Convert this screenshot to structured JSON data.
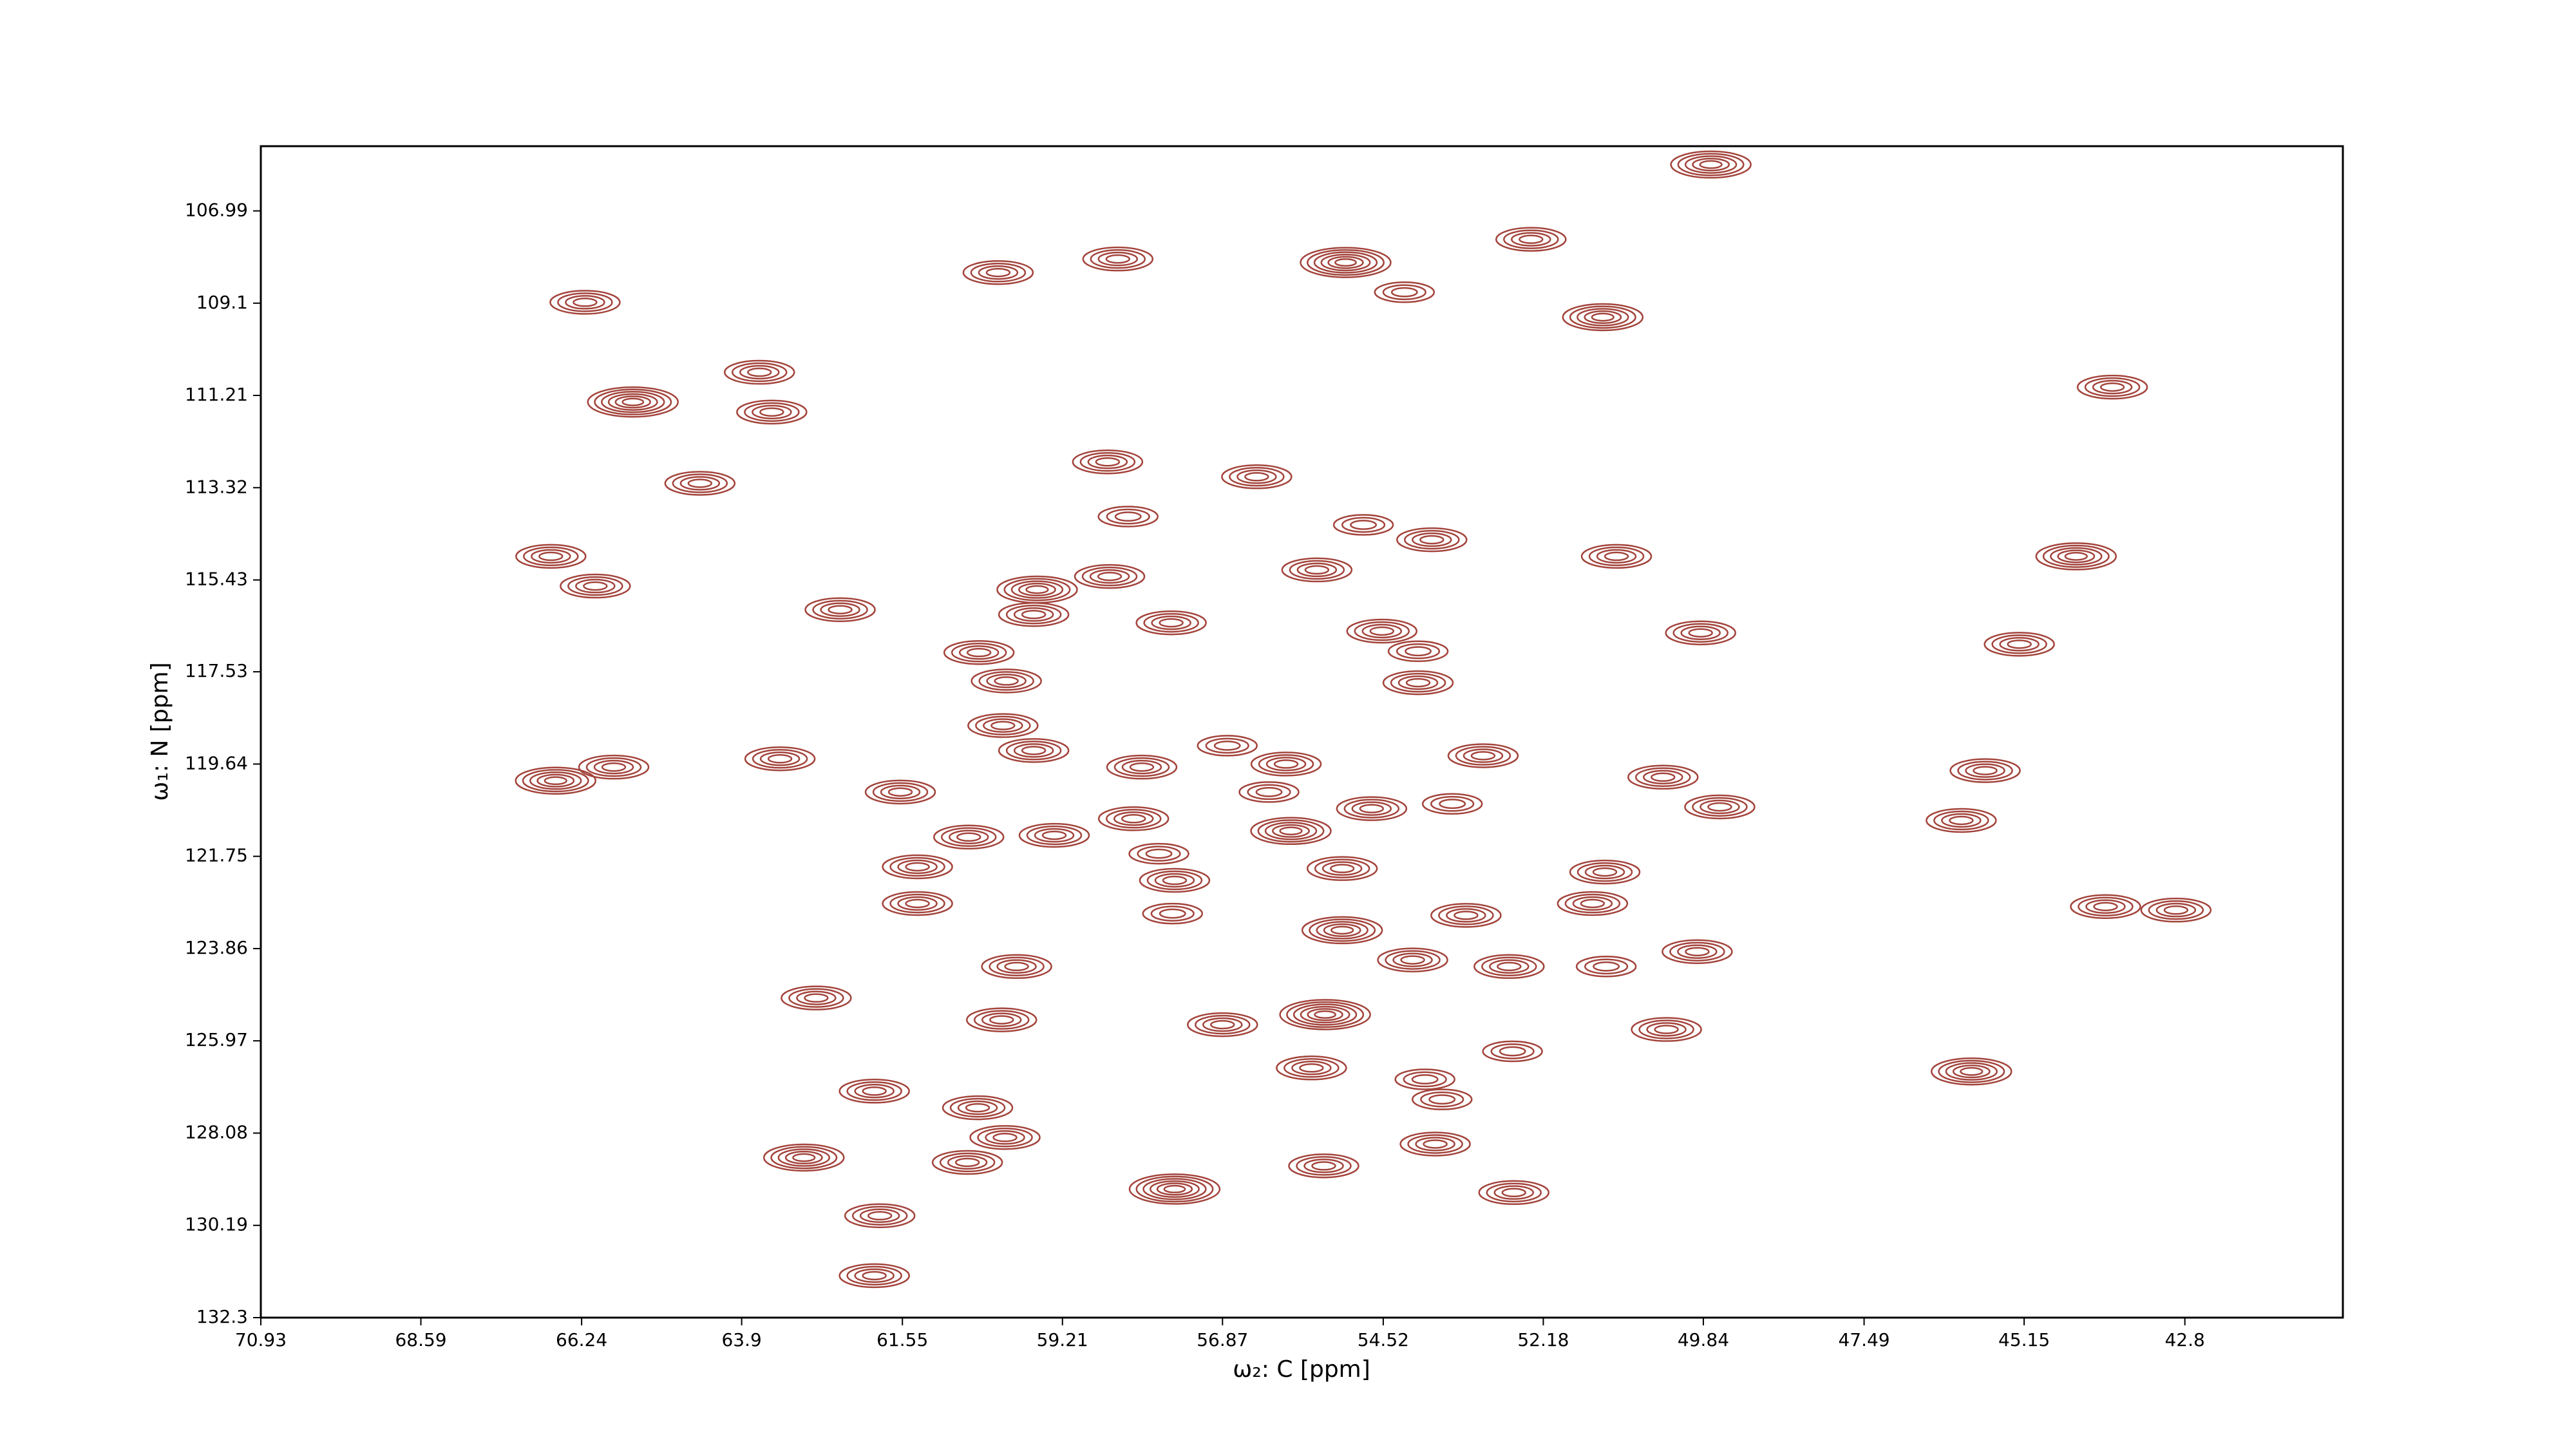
{
  "chart_data": {
    "type": "contour",
    "xlabel": "ω₂: C [ppm]",
    "ylabel": "ω₁: N [ppm]",
    "xlim": [
      70.93,
      40.49
    ],
    "ylim": [
      132.3,
      105.51
    ],
    "xticks": [
      70.93,
      68.59,
      66.24,
      63.9,
      61.55,
      59.21,
      56.87,
      54.52,
      52.18,
      49.84,
      47.49,
      45.15,
      42.8
    ],
    "yticks": [
      106.99,
      109.1,
      111.21,
      113.32,
      115.43,
      117.53,
      119.64,
      121.75,
      123.86,
      125.97,
      128.08,
      130.19,
      132.3
    ],
    "color": "#a3443c",
    "x": [
      49.73,
      60.15,
      58.4,
      55.07,
      52.36,
      54.21,
      66.19,
      51.31,
      65.49,
      63.64,
      63.46,
      43.86,
      58.55,
      56.37,
      64.51,
      58.25,
      54.81,
      53.81,
      66.69,
      66.04,
      44.39,
      51.11,
      59.58,
      58.52,
      55.49,
      62.46,
      57.62,
      59.63,
      49.88,
      54.54,
      54.01,
      45.22,
      60.43,
      60.03,
      54.01,
      60.08,
      59.63,
      63.34,
      66.62,
      65.77,
      58.05,
      56.8,
      55.94,
      53.06,
      50.43,
      45.72,
      61.58,
      56.19,
      54.69,
      49.6,
      46.07,
      60.58,
      59.33,
      58.17,
      55.87,
      53.51,
      61.33,
      57.8,
      57.57,
      55.12,
      51.28,
      61.33,
      57.6,
      51.46,
      43.96,
      42.93,
      55.12,
      53.31,
      49.93,
      59.88,
      54.09,
      52.68,
      51.26,
      62.81,
      60.1,
      55.37,
      56.87,
      50.38,
      55.57,
      52.63,
      45.92,
      53.91,
      61.96,
      60.45,
      53.66,
      60.05,
      53.76,
      62.99,
      60.6,
      55.39,
      57.57,
      52.61,
      61.88,
      61.96
    ],
    "y": [
      105.93,
      108.4,
      108.09,
      108.17,
      107.64,
      108.85,
      109.08,
      109.42,
      111.36,
      110.68,
      111.59,
      111.02,
      112.73,
      113.07,
      113.22,
      113.98,
      114.17,
      114.51,
      114.89,
      115.57,
      114.89,
      114.89,
      115.65,
      115.35,
      115.2,
      116.11,
      116.41,
      116.22,
      116.64,
      116.6,
      117.06,
      116.9,
      117.09,
      117.74,
      117.78,
      118.76,
      119.33,
      119.52,
      120.02,
      119.71,
      119.71,
      119.22,
      119.64,
      119.45,
      119.94,
      119.79,
      120.28,
      120.28,
      120.66,
      120.62,
      120.93,
      121.31,
      121.27,
      120.89,
      121.17,
      120.55,
      121.99,
      121.69,
      122.3,
      122.03,
      122.11,
      122.83,
      123.06,
      122.83,
      122.9,
      122.98,
      123.44,
      123.1,
      123.93,
      124.27,
      124.12,
      124.27,
      124.27,
      124.99,
      125.49,
      125.37,
      125.6,
      125.71,
      126.59,
      126.21,
      126.67,
      126.85,
      127.12,
      127.5,
      127.31,
      128.18,
      128.33,
      128.64,
      128.75,
      128.83,
      129.36,
      129.44,
      129.97,
      131.34
    ],
    "values": [
      5,
      4,
      4,
      6,
      4,
      3,
      4,
      5,
      6,
      4,
      4,
      4,
      4,
      4,
      4,
      3,
      3,
      4,
      4,
      4,
      5,
      4,
      5,
      4,
      4,
      4,
      4,
      4,
      4,
      4,
      3,
      4,
      4,
      4,
      4,
      4,
      4,
      4,
      5,
      4,
      4,
      3,
      4,
      4,
      4,
      4,
      4,
      3,
      4,
      4,
      4,
      4,
      4,
      4,
      5,
      3,
      4,
      3,
      4,
      4,
      4,
      4,
      3,
      4,
      4,
      4,
      5,
      4,
      4,
      4,
      4,
      4,
      3,
      4,
      4,
      6,
      4,
      4,
      4,
      3,
      5,
      3,
      4,
      4,
      3,
      4,
      4,
      5,
      4,
      4,
      6,
      4,
      4,
      4
    ]
  }
}
